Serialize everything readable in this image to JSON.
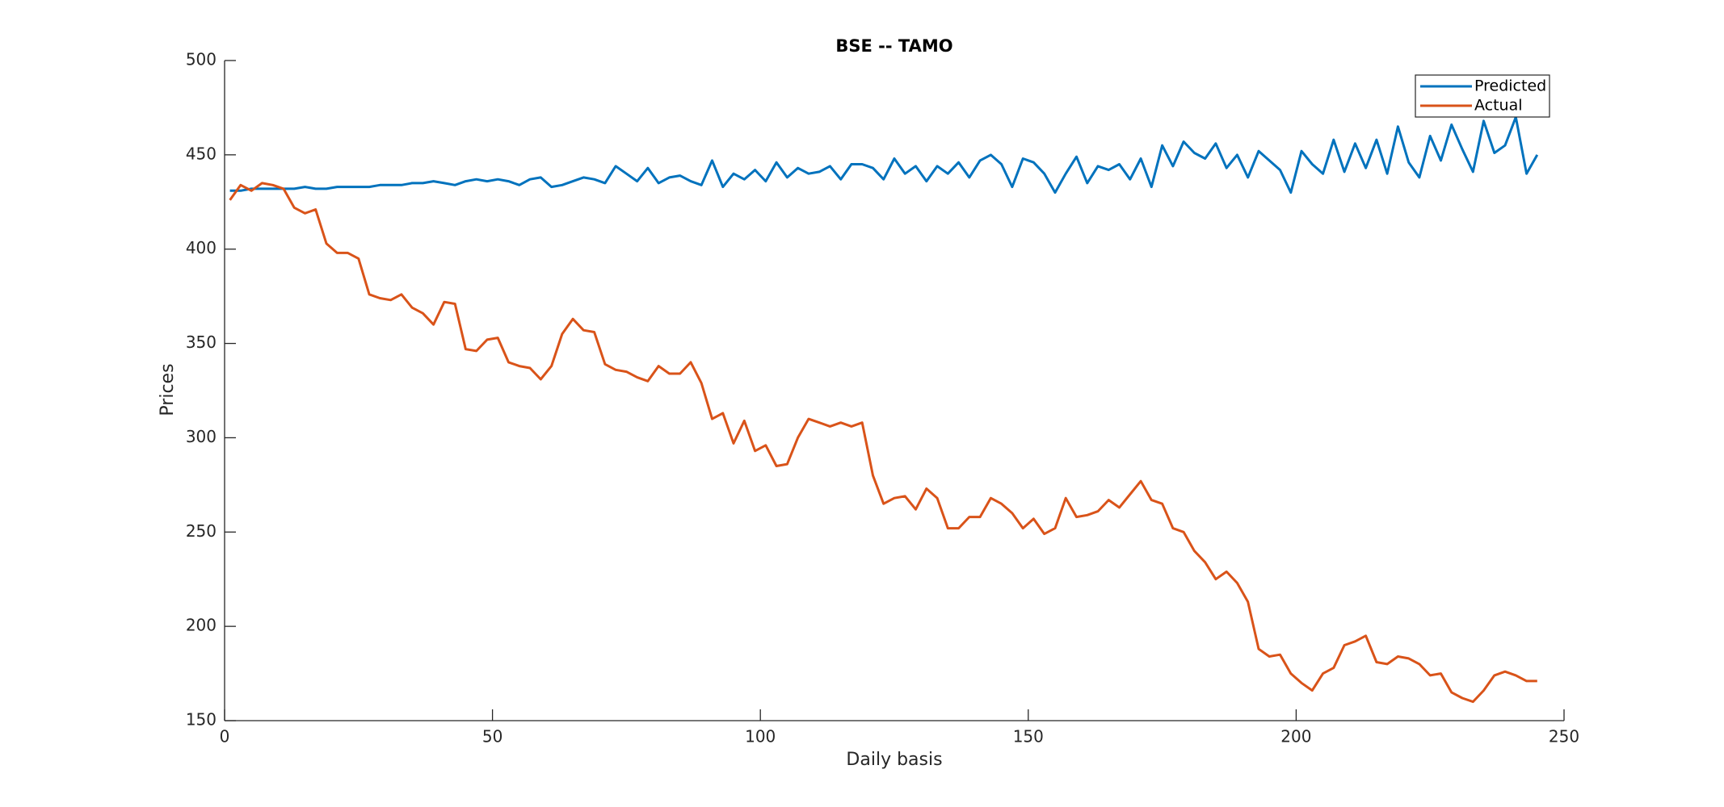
{
  "chart_data": {
    "type": "line",
    "title": "BSE -- TAMO",
    "x_label": "Daily basis",
    "y_label": "Prices",
    "x": [
      1,
      3,
      5,
      7,
      9,
      11,
      13,
      15,
      17,
      19,
      21,
      23,
      25,
      27,
      29,
      31,
      33,
      35,
      37,
      39,
      41,
      43,
      45,
      47,
      49,
      51,
      53,
      55,
      57,
      59,
      61,
      63,
      65,
      67,
      69,
      71,
      73,
      75,
      77,
      79,
      81,
      83,
      85,
      87,
      89,
      91,
      93,
      95,
      97,
      99,
      101,
      103,
      105,
      107,
      109,
      111,
      113,
      115,
      117,
      119,
      121,
      123,
      125,
      127,
      129,
      131,
      133,
      135,
      137,
      139,
      141,
      143,
      145,
      147,
      149,
      151,
      153,
      155,
      157,
      159,
      161,
      163,
      165,
      167,
      169,
      171,
      173,
      175,
      177,
      179,
      181,
      183,
      185,
      187,
      189,
      191,
      193,
      195,
      197,
      199,
      201,
      203,
      205,
      207,
      209,
      211,
      213,
      215,
      217,
      219,
      221,
      223,
      225,
      227,
      229,
      231,
      233,
      235,
      237,
      239,
      241,
      243,
      245
    ],
    "series": [
      {
        "name": "Predicted",
        "color": "#0072BD",
        "values": [
          431,
          431,
          432,
          432,
          432,
          432,
          432,
          433,
          432,
          432,
          433,
          433,
          433,
          433,
          434,
          434,
          434,
          435,
          435,
          436,
          435,
          434,
          436,
          437,
          436,
          437,
          436,
          434,
          437,
          438,
          433,
          434,
          436,
          438,
          437,
          435,
          444,
          440,
          436,
          443,
          435,
          438,
          439,
          436,
          434,
          447,
          433,
          440,
          437,
          442,
          436,
          446,
          438,
          443,
          440,
          441,
          444,
          437,
          445,
          445,
          443,
          437,
          448,
          440,
          444,
          436,
          444,
          440,
          446,
          438,
          447,
          450,
          445,
          433,
          448,
          446,
          440,
          430,
          440,
          449,
          435,
          444,
          442,
          445,
          437,
          448,
          433,
          455,
          444,
          457,
          451,
          448,
          456,
          443,
          450,
          438,
          452,
          447,
          442,
          430,
          452,
          445,
          440,
          458,
          441,
          456,
          443,
          458,
          440,
          465,
          446,
          438,
          460,
          447,
          466,
          453,
          441,
          468,
          451,
          455,
          470,
          440,
          450
        ]
      },
      {
        "name": "Actual",
        "color": "#D95319",
        "values": [
          426,
          434,
          431,
          435,
          434,
          432,
          422,
          419,
          421,
          403,
          398,
          398,
          395,
          376,
          374,
          373,
          376,
          369,
          366,
          360,
          372,
          371,
          347,
          346,
          352,
          353,
          340,
          338,
          337,
          331,
          338,
          355,
          363,
          357,
          356,
          339,
          336,
          335,
          332,
          330,
          338,
          334,
          334,
          340,
          329,
          310,
          313,
          297,
          309,
          293,
          296,
          285,
          286,
          300,
          310,
          308,
          306,
          308,
          306,
          308,
          280,
          265,
          268,
          269,
          262,
          273,
          268,
          252,
          252,
          258,
          258,
          268,
          265,
          260,
          252,
          257,
          249,
          252,
          268,
          258,
          259,
          261,
          267,
          263,
          270,
          277,
          267,
          265,
          252,
          250,
          240,
          234,
          225,
          229,
          223,
          213,
          188,
          184,
          185,
          175,
          170,
          166,
          175,
          178,
          190,
          192,
          195,
          181,
          180,
          184,
          183,
          180,
          174,
          175,
          165,
          162,
          160,
          166,
          174,
          176,
          174,
          171,
          171
        ]
      }
    ],
    "xlim": [
      0,
      250
    ],
    "xticks": [
      0,
      50,
      100,
      150,
      200,
      250
    ],
    "ylim": [
      150,
      500
    ],
    "yticks": [
      150,
      200,
      250,
      300,
      350,
      400,
      450,
      500
    ],
    "legend": "upper right"
  }
}
